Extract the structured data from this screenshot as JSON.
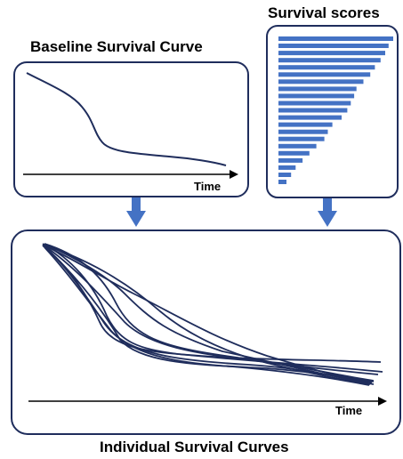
{
  "baseline_panel": {
    "title": "Baseline Survival Curve",
    "axis_label": "Time"
  },
  "scores_panel": {
    "title": "Survival scores",
    "scores": [
      1.0,
      0.96,
      0.93,
      0.89,
      0.84,
      0.8,
      0.74,
      0.68,
      0.66,
      0.63,
      0.6,
      0.55,
      0.47,
      0.43,
      0.4,
      0.33,
      0.27,
      0.21,
      0.15,
      0.11,
      0.07
    ]
  },
  "individual_panel": {
    "title": "Individual Survival Curves",
    "axis_label": "Time"
  },
  "colors": {
    "curve": "#1f2d5c",
    "bar": "#4472c4",
    "arrow": "#4472c4",
    "border": "#1f2d5c"
  }
}
